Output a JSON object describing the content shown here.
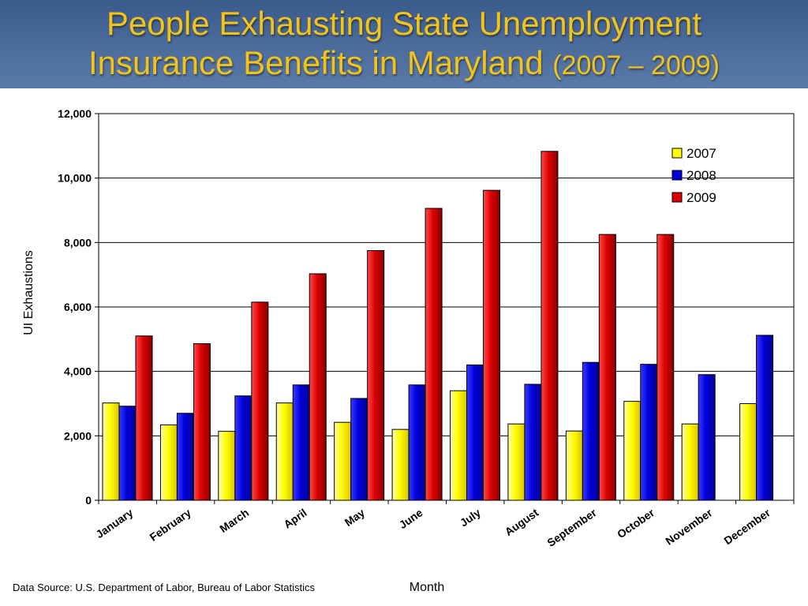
{
  "title": {
    "line1": "People Exhausting State Unemployment",
    "line2_main": "Insurance Benefits in Maryland",
    "line2_years": "(2007 – 2009)"
  },
  "source": "Data Source: U.S. Department of Labor, Bureau of Labor Statistics",
  "colors": {
    "title_bg": "#4a6a9a",
    "title_text": "#f3c316",
    "series": [
      "#ffff00",
      "#0000dd",
      "#dd0000"
    ]
  },
  "chart_data": {
    "type": "bar",
    "title": "",
    "xlabel": "Month",
    "ylabel": "UI Exhaustions",
    "ylim": [
      0,
      12000
    ],
    "yticks": [
      0,
      2000,
      4000,
      6000,
      8000,
      10000,
      12000
    ],
    "ytick_labels": [
      "0",
      "2,000",
      "4,000",
      "6,000",
      "8,000",
      "10,000",
      "12,000"
    ],
    "grid": true,
    "legend_position": "top-right",
    "categories": [
      "January",
      "February",
      "March",
      "April",
      "May",
      "June",
      "July",
      "August",
      "September",
      "October",
      "November",
      "December"
    ],
    "series": [
      {
        "name": "2007",
        "color": "#ffff00",
        "values": [
          3020,
          2340,
          2140,
          3020,
          2420,
          2200,
          3400,
          2370,
          2150,
          3070,
          2370,
          3000
        ]
      },
      {
        "name": "2008",
        "color": "#0000dd",
        "values": [
          2920,
          2700,
          3240,
          3580,
          3160,
          3580,
          4200,
          3600,
          4280,
          4220,
          3900,
          5120
        ]
      },
      {
        "name": "2009",
        "color": "#dd0000",
        "values": [
          5100,
          4860,
          6150,
          7030,
          7750,
          9060,
          9620,
          10830,
          8250,
          8250,
          null,
          null
        ]
      }
    ]
  }
}
